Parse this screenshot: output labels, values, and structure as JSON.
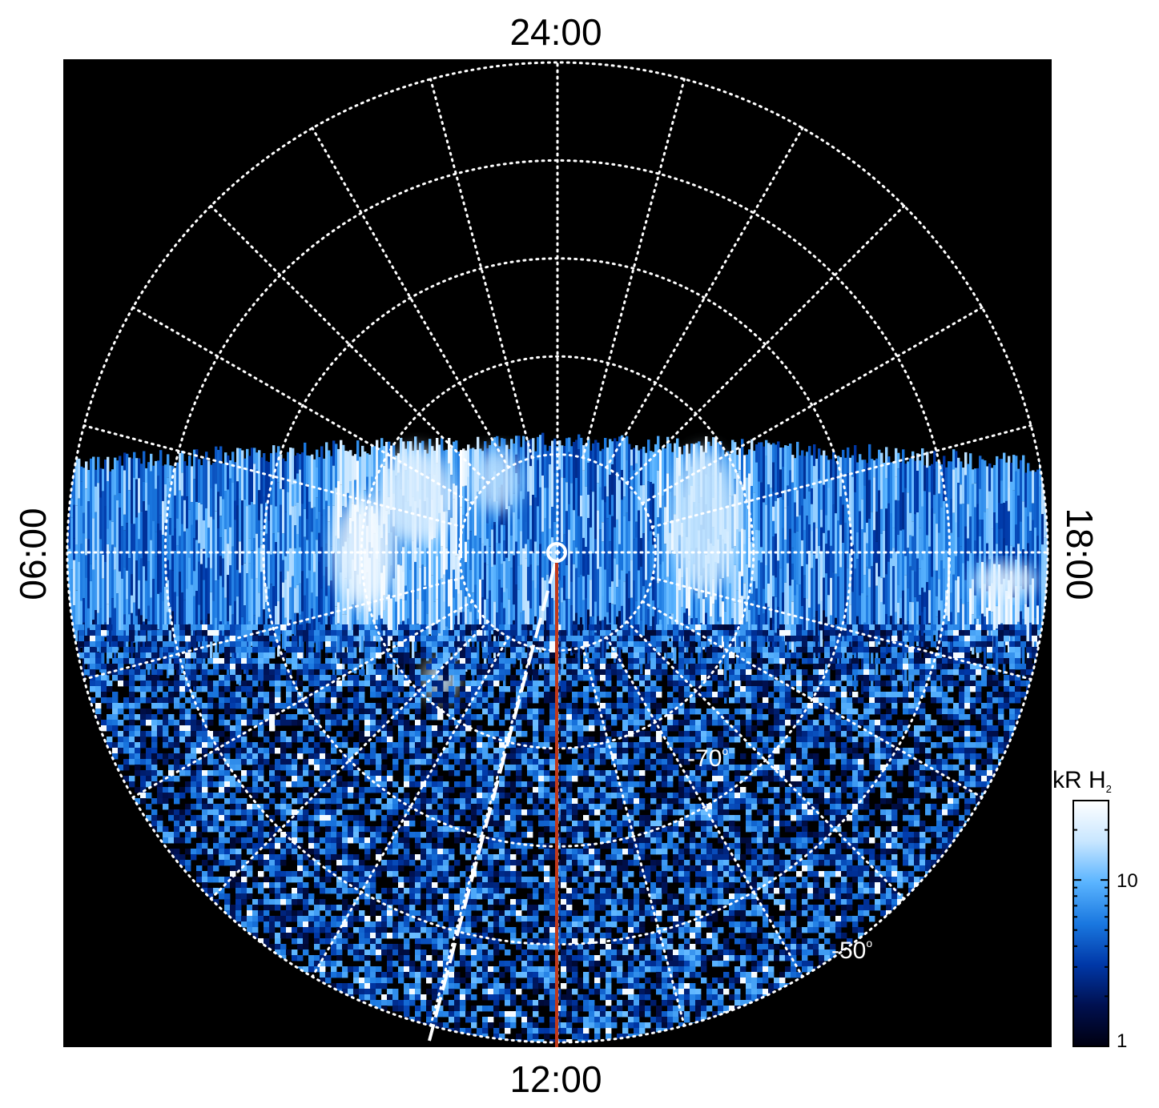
{
  "chart_data": {
    "type": "heatmap",
    "projection": "polar (south pole view)",
    "mlt_labels": {
      "top": "24:00",
      "left": "06:00",
      "right": "18:00",
      "bottom": "12:00"
    },
    "latitude_labels": [
      {
        "text": "-70",
        "degree": "o",
        "latitude": -70
      },
      {
        "text": "-50",
        "degree": "o",
        "latitude": -50
      }
    ],
    "latitude_circles": [
      -80,
      -70,
      -60,
      -50,
      -40
    ],
    "meridian_spacing_hours": 1,
    "colorbar": {
      "title": "kR H",
      "title_subscript": "2",
      "scale": "log",
      "range": [
        1,
        30
      ],
      "ticks": [
        {
          "label": "10",
          "value": 10
        },
        {
          "label": "1",
          "value": 1
        }
      ],
      "colors": [
        "#000010",
        "#001050",
        "#0038a8",
        "#1a78e0",
        "#5ab4ff",
        "#c8e6ff",
        "#ffffff"
      ]
    },
    "overlays": [
      {
        "name": "red meridian",
        "style": "solid",
        "color": "#c0391b",
        "mlt": "12:00"
      },
      {
        "name": "white dashed meridian",
        "style": "dashed",
        "color": "#ffffff",
        "mlt": "11:30"
      },
      {
        "name": "pole marker",
        "style": "circle",
        "color": "#ffffff"
      }
    ],
    "grid": true
  }
}
